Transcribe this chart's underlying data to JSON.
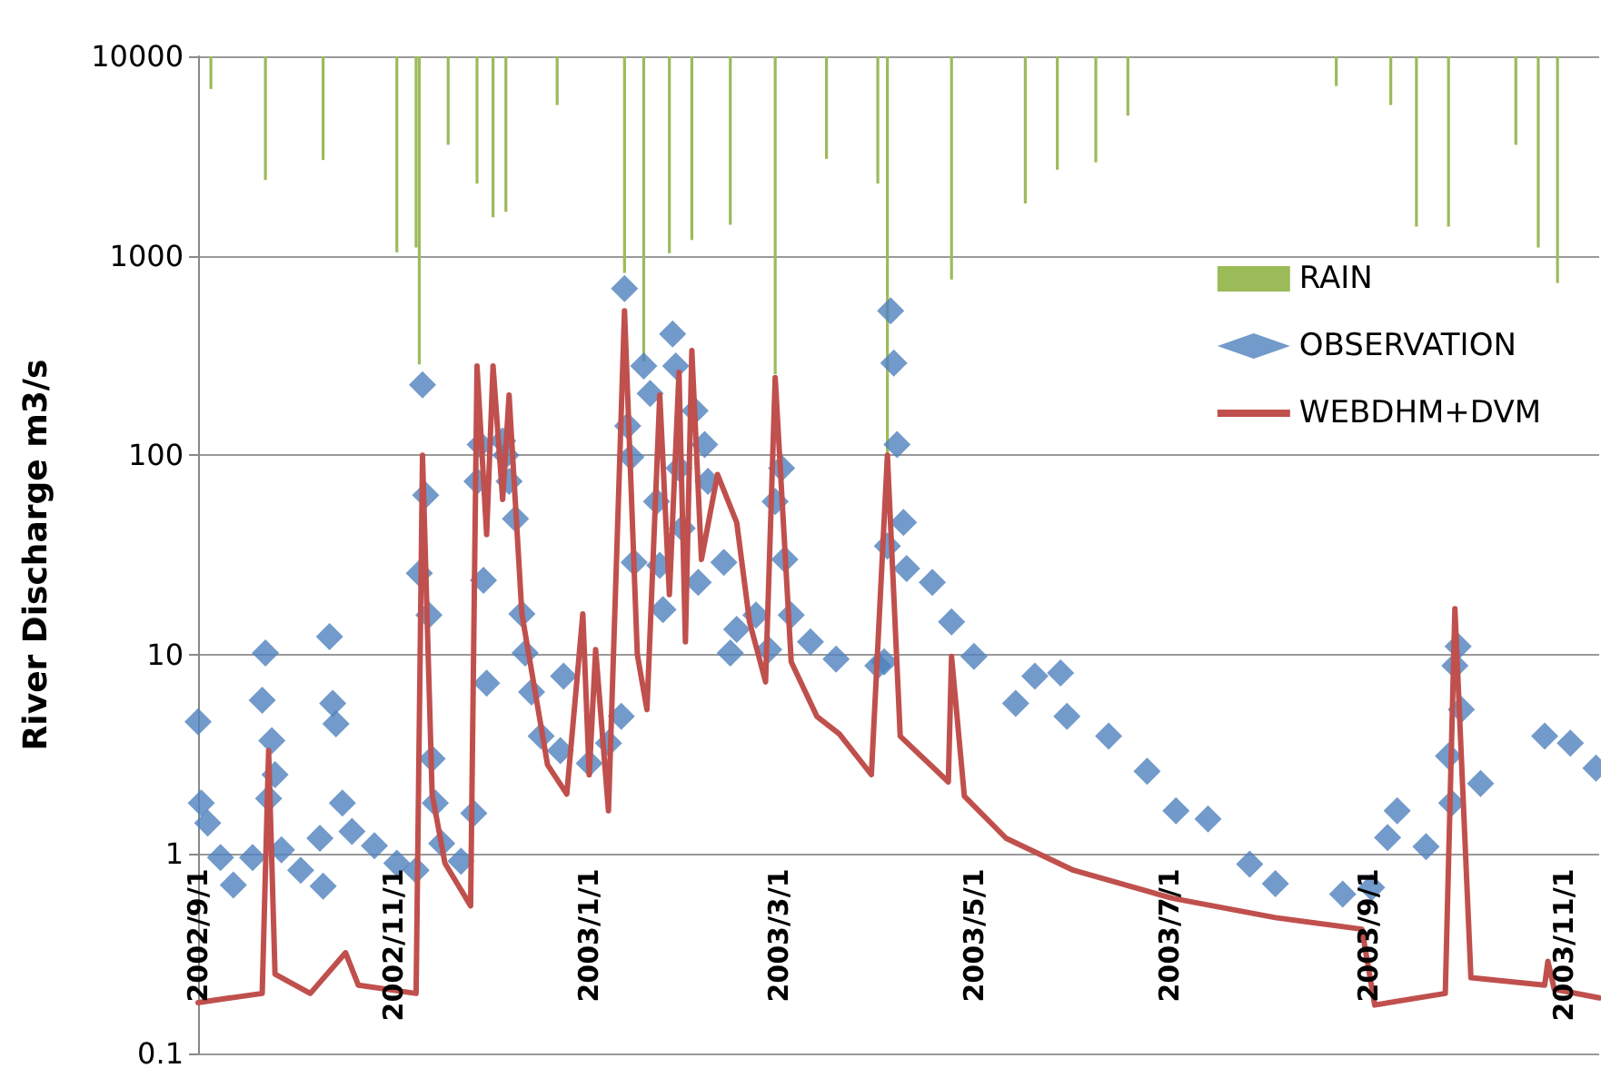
{
  "chart_data": {
    "type": "line",
    "ylabel": "River Discharge m3/s",
    "log": true,
    "grid": "y",
    "legend": "top right",
    "xlim": [
      "2002-09-01",
      "2003-11-12"
    ],
    "xticks": [
      {
        "value": "2002-09-01",
        "label": "2002/9/1"
      },
      {
        "value": "2002-11-01",
        "label": "2002/11/1"
      },
      {
        "value": "2003-01-01",
        "label": "2003/1/1"
      },
      {
        "value": "2003-03-01",
        "label": "2003/3/1"
      },
      {
        "value": "2003-05-01",
        "label": "2003/5/1"
      },
      {
        "value": "2003-07-01",
        "label": "2003/7/1"
      },
      {
        "value": "2003-09-01",
        "label": "2003/9/1"
      },
      {
        "value": "2003-11-01",
        "label": "2003/11/1"
      }
    ],
    "ylim": [
      0.1,
      10000
    ],
    "yticks": [
      0.1,
      1,
      10,
      100,
      1000,
      10000
    ],
    "series": [
      {
        "name": "RAIN",
        "type": "bar",
        "color": "#9bbb59",
        "x": [
          "2002-09-05",
          "2002-09-22",
          "2002-10-10",
          "2002-11-02",
          "2002-11-08",
          "2002-11-09",
          "2002-11-18",
          "2002-11-27",
          "2002-12-02",
          "2002-12-06",
          "2002-12-22",
          "2003-01-12",
          "2003-01-18",
          "2003-01-26",
          "2003-02-02",
          "2003-02-14",
          "2003-02-28",
          "2003-03-16",
          "2003-04-01",
          "2003-04-04",
          "2003-04-24",
          "2003-05-17",
          "2003-05-27",
          "2003-06-08",
          "2003-06-18",
          "2003-08-22",
          "2003-09-08",
          "2003-09-16",
          "2003-09-26",
          "2003-10-17",
          "2003-10-24",
          "2003-10-30"
        ],
        "base": [
          10000,
          10000,
          10000,
          10000,
          10000,
          10000,
          10000,
          10000,
          10000,
          10000,
          10000,
          10000,
          10000,
          10000,
          10000,
          10000,
          10000,
          10000,
          10000,
          10000,
          10000,
          10000,
          10000,
          10000,
          10000,
          10000,
          10000,
          10000,
          10000,
          10000,
          10000,
          10000
        ],
        "values": [
          -3140,
          -7600,
          -6980,
          -8960,
          -8900,
          -9715,
          -6400,
          -7700,
          -8440,
          -8340,
          -4300,
          -9180,
          -9705,
          -8970,
          -8800,
          -8570,
          -9745,
          -6940,
          -7700,
          -9900,
          -9240,
          -8170,
          -7300,
          -7060,
          -4960,
          -2900,
          -4300,
          -8600,
          -8600,
          -6400,
          -8900,
          -9270
        ]
      },
      {
        "name": "OBSERVATION",
        "type": "scatter",
        "marker": "diamond",
        "color": "#4f81bd",
        "x": [
          "2002-09-01",
          "2002-09-02",
          "2002-09-04",
          "2002-09-08",
          "2002-09-12",
          "2002-09-18",
          "2002-09-21",
          "2002-09-22",
          "2002-09-23",
          "2002-09-24",
          "2002-09-25",
          "2002-09-27",
          "2002-10-03",
          "2002-10-09",
          "2002-10-10",
          "2002-10-12",
          "2002-10-13",
          "2002-10-14",
          "2002-10-16",
          "2002-10-19",
          "2002-10-26",
          "2002-11-02",
          "2002-11-08",
          "2002-11-09",
          "2002-11-10",
          "2002-11-11",
          "2002-11-12",
          "2002-11-13",
          "2002-11-14",
          "2002-11-16",
          "2002-11-22",
          "2002-11-26",
          "2002-11-27",
          "2002-11-28",
          "2002-11-29",
          "2002-11-30",
          "2002-12-05",
          "2002-12-06",
          "2002-12-07",
          "2002-12-09",
          "2002-12-11",
          "2002-12-12",
          "2002-12-14",
          "2002-12-17",
          "2002-12-23",
          "2002-12-24",
          "2003-01-01",
          "2003-01-07",
          "2003-01-11",
          "2003-01-12",
          "2003-01-13",
          "2003-01-14",
          "2003-01-15",
          "2003-01-18",
          "2003-01-20",
          "2003-01-22",
          "2003-01-23",
          "2003-01-24",
          "2003-01-27",
          "2003-01-28",
          "2003-01-29",
          "2003-01-30",
          "2003-02-03",
          "2003-02-04",
          "2003-02-06",
          "2003-02-07",
          "2003-02-12",
          "2003-02-14",
          "2003-02-16",
          "2003-02-22",
          "2003-02-26",
          "2003-02-28",
          "2003-03-02",
          "2003-03-03",
          "2003-03-05",
          "2003-03-11",
          "2003-03-19",
          "2003-04-01",
          "2003-04-03",
          "2003-04-04",
          "2003-04-05",
          "2003-04-06",
          "2003-04-07",
          "2003-04-09",
          "2003-04-10",
          "2003-04-18",
          "2003-04-24",
          "2003-05-01",
          "2003-05-14",
          "2003-05-20",
          "2003-05-28",
          "2003-05-30",
          "2003-06-12",
          "2003-06-24",
          "2003-07-03",
          "2003-07-13",
          "2003-07-26",
          "2003-08-03",
          "2003-08-24",
          "2003-09-02",
          "2003-09-07",
          "2003-09-10",
          "2003-09-19",
          "2003-09-26",
          "2003-09-27",
          "2003-09-28",
          "2003-09-29",
          "2003-09-30",
          "2003-10-06",
          "2003-10-26",
          "2003-11-03",
          "2003-11-11"
        ],
        "values": [
          4.6,
          1.8,
          1.43,
          0.96,
          0.7,
          0.96,
          5.9,
          10.2,
          1.9,
          3.7,
          2.5,
          1.05,
          0.83,
          1.2,
          0.69,
          12.3,
          5.7,
          4.5,
          1.8,
          1.3,
          1.1,
          0.9,
          0.83,
          25.6,
          225,
          63,
          15.8,
          3,
          1.8,
          1.13,
          0.92,
          1.6,
          74,
          113,
          23.6,
          7.2,
          118,
          100,
          74,
          48,
          16,
          10.2,
          6.5,
          3.9,
          3.3,
          7.8,
          2.85,
          3.6,
          4.9,
          685,
          140,
          98,
          29,
          280,
          204,
          58.6,
          28,
          16.8,
          405,
          280,
          86,
          43,
          167,
          23,
          113,
          74,
          29,
          10.2,
          13.4,
          15.8,
          10.6,
          58.6,
          86,
          30,
          15.8,
          11.6,
          9.5,
          8.8,
          9.2,
          35,
          530,
          290,
          113,
          46,
          27,
          23,
          14.6,
          9.8,
          5.7,
          7.8,
          8.1,
          4.9,
          3.9,
          2.6,
          1.65,
          1.5,
          0.89,
          0.71,
          0.63,
          0.68,
          1.21,
          1.65,
          1.09,
          3.1,
          1.8,
          8.8,
          11,
          5.3,
          2.26,
          3.9,
          3.6,
          2.7
        ]
      },
      {
        "name": "WEBDHM+DVM",
        "marker": "none",
        "line_style": "solid",
        "color": "#c0504d",
        "x": [
          "2002-09-01",
          "2002-09-11",
          "2002-09-21",
          "2002-09-23",
          "2002-09-25",
          "2002-10-06",
          "2002-10-17",
          "2002-10-21",
          "2002-11-08",
          "2002-11-10",
          "2002-11-13",
          "2002-11-17",
          "2002-11-25",
          "2002-11-27",
          "2002-11-30",
          "2002-12-02",
          "2002-12-05",
          "2002-12-07",
          "2002-12-11",
          "2002-12-19",
          "2002-12-25",
          "2002-12-30",
          "2003-01-01",
          "2003-01-03",
          "2003-01-07",
          "2003-01-12",
          "2003-01-16",
          "2003-01-19",
          "2003-01-23",
          "2003-01-26",
          "2003-01-29",
          "2003-01-31",
          "2003-02-02",
          "2003-02-05",
          "2003-02-10",
          "2003-02-16",
          "2003-02-20",
          "2003-02-25",
          "2003-02-28",
          "2003-03-05",
          "2003-03-13",
          "2003-03-20",
          "2003-03-30",
          "2003-04-04",
          "2003-04-08",
          "2003-04-23",
          "2003-04-24",
          "2003-04-28",
          "2003-05-11",
          "2003-06-01",
          "2003-07-02",
          "2003-08-03",
          "2003-08-30",
          "2003-09-03",
          "2003-09-25",
          "2003-09-28",
          "2003-10-03",
          "2003-10-26",
          "2003-10-27",
          "2003-10-29",
          "2003-11-12"
        ],
        "values": [
          0.18,
          0.19,
          0.2,
          3.3,
          0.25,
          0.2,
          0.32,
          0.22,
          0.2,
          100,
          2,
          0.9,
          0.55,
          280,
          40,
          280,
          60,
          200,
          16,
          2.8,
          2,
          16,
          2.5,
          10.6,
          1.65,
          530,
          10,
          5.3,
          200,
          20,
          260,
          11.6,
          335,
          30,
          80,
          46,
          14.6,
          7.3,
          245,
          9.2,
          4.9,
          4,
          2.5,
          100,
          3.9,
          2.3,
          9.8,
          1.95,
          1.2,
          0.83,
          0.6,
          0.48,
          0.42,
          0.175,
          0.2,
          17,
          0.24,
          0.22,
          0.29,
          0.21,
          0.19
        ]
      }
    ]
  }
}
